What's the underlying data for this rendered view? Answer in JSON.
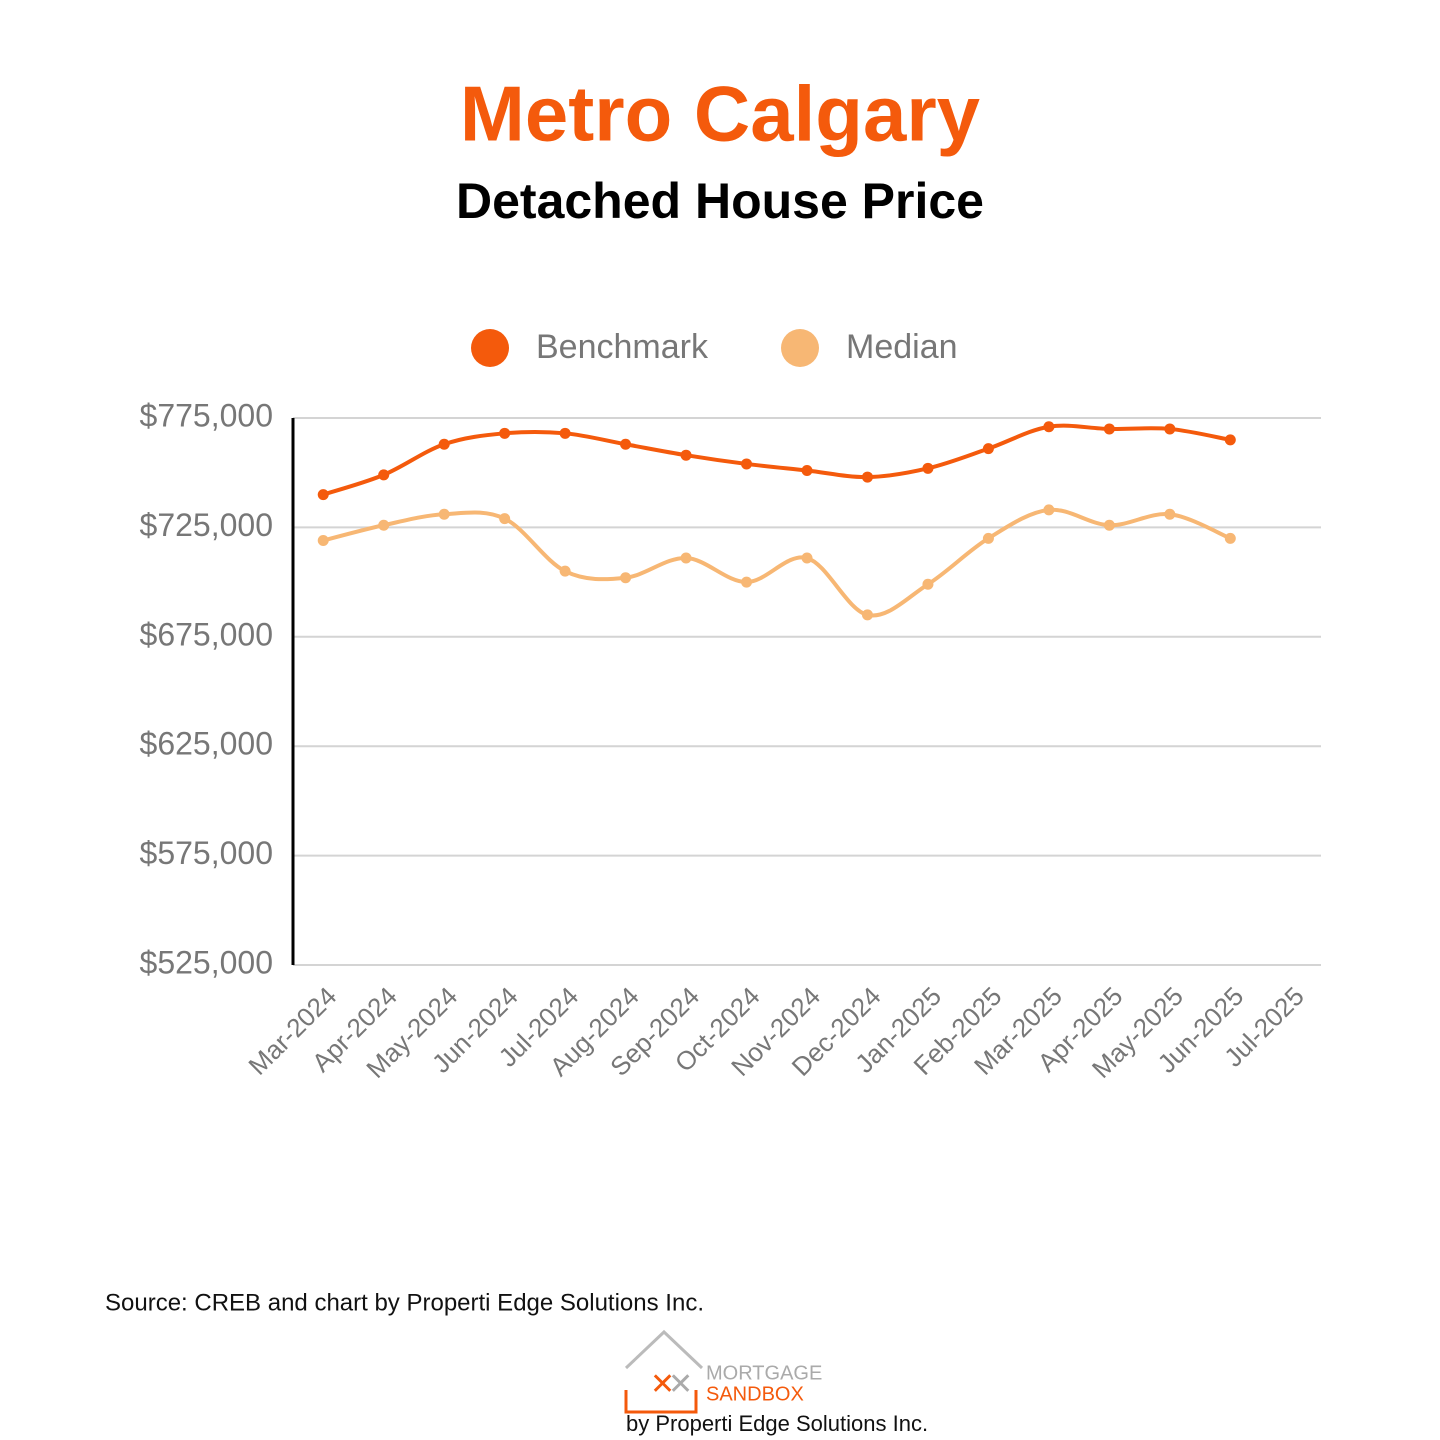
{
  "chart_data": {
    "type": "line",
    "title": "Metro Calgary",
    "subtitle": "Detached House Price",
    "categories": [
      "Mar-2024",
      "Apr-2024",
      "May-2024",
      "Jun-2024",
      "Jul-2024",
      "Aug-2024",
      "Sep-2024",
      "Oct-2024",
      "Nov-2024",
      "Dec-2024",
      "Jan-2025",
      "Feb-2025",
      "Mar-2025",
      "Apr-2025",
      "May-2025",
      "Jun-2025",
      "Jul-2025"
    ],
    "series": [
      {
        "name": "Benchmark",
        "color": "#f45a0c",
        "values": [
          740000,
          749000,
          763000,
          768000,
          768000,
          763000,
          758000,
          754000,
          751000,
          748000,
          752000,
          761000,
          771000,
          770000,
          770000,
          765000,
          null
        ]
      },
      {
        "name": "Median",
        "color": "#f7b774",
        "values": [
          719000,
          726000,
          731000,
          729000,
          705000,
          702000,
          711000,
          700000,
          711000,
          685000,
          699000,
          720000,
          733000,
          726000,
          731000,
          720000,
          null
        ]
      }
    ],
    "ylim": [
      525000,
      775000
    ],
    "yticks": [
      {
        "value": 525000,
        "label": "$525,000"
      },
      {
        "value": 575000,
        "label": "$575,000"
      },
      {
        "value": 625000,
        "label": "$625,000"
      },
      {
        "value": 675000,
        "label": "$675,000"
      },
      {
        "value": 725000,
        "label": "$725,000"
      },
      {
        "value": 775000,
        "label": "$775,000"
      }
    ],
    "grid": true,
    "legend": "top",
    "smooth": true
  },
  "footer": {
    "source": "Source: CREB and chart by Properti Edge Solutions Inc.",
    "logo_top": "MORTGAGE",
    "logo_bottom": "SANDBOX",
    "byline": "by Properti Edge Solutions Inc."
  }
}
